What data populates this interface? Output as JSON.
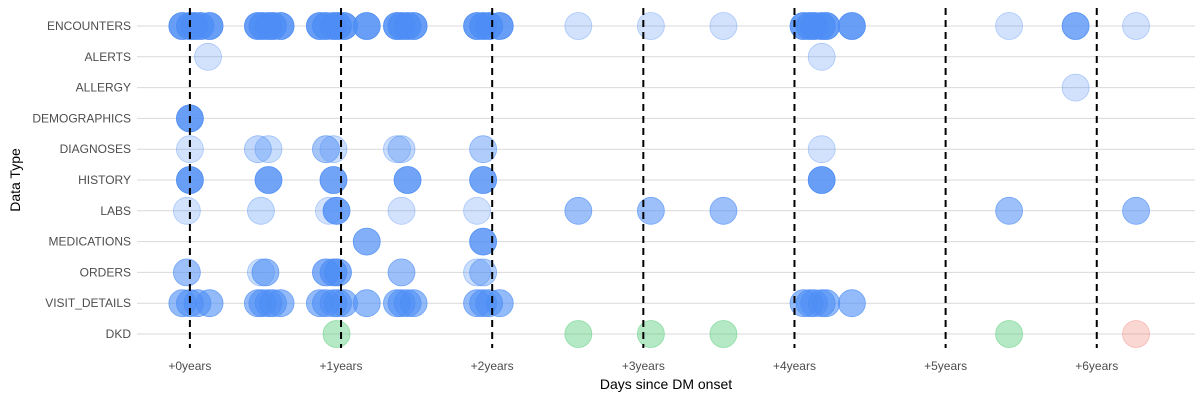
{
  "chart_data": {
    "type": "scatter",
    "xlabel": "Days since DM onset",
    "ylabel": "Data Type",
    "xlim": [
      -0.35,
      6.65
    ],
    "x_ticks": [
      {
        "value": 0,
        "label": "+0years"
      },
      {
        "value": 1,
        "label": "+1years"
      },
      {
        "value": 2,
        "label": "+2years"
      },
      {
        "value": 3,
        "label": "+3years"
      },
      {
        "value": 4,
        "label": "+4years"
      },
      {
        "value": 5,
        "label": "+5years"
      },
      {
        "value": 6,
        "label": "+6years"
      }
    ],
    "categories": [
      "ENCOUNTERS",
      "ALERTS",
      "ALLERGY",
      "DEMOGRAPHICS",
      "DIAGNOSES",
      "HISTORY",
      "LABS",
      "MEDICATIONS",
      "ORDERS",
      "VISIT_DETAILS",
      "DKD"
    ],
    "vlines": [
      0,
      1,
      2,
      3,
      4,
      5,
      6
    ],
    "grid": "horizontal",
    "legend": "none",
    "colors": {
      "default": "#4d8df5",
      "dkd_negative": "#5ccf7f",
      "dkd_positive": "#f28b82",
      "vline": "#000000",
      "grid": "#d9d9d9"
    },
    "points": [
      {
        "category": "ENCOUNTERS",
        "x": [
          -0.05,
          0.0,
          0.03,
          0.07,
          0.13,
          0.45,
          0.48,
          0.52,
          0.55,
          0.6,
          0.86,
          0.9,
          0.95,
          0.98,
          1.02,
          1.17,
          1.37,
          1.4,
          1.44,
          1.48,
          1.9,
          1.94,
          1.98,
          2.05,
          2.57,
          3.05,
          3.53,
          4.06,
          4.1,
          4.13,
          4.18,
          4.21,
          4.38,
          5.42,
          5.86,
          6.26
        ],
        "alpha": [
          0.85,
          0.85,
          0.85,
          0.85,
          0.85,
          0.85,
          0.85,
          0.85,
          0.85,
          0.85,
          0.85,
          0.85,
          0.85,
          0.85,
          0.85,
          0.85,
          0.85,
          0.85,
          0.85,
          0.85,
          0.85,
          0.85,
          0.85,
          0.85,
          0.25,
          0.25,
          0.25,
          0.85,
          0.85,
          0.85,
          0.85,
          0.85,
          0.85,
          0.25,
          0.75,
          0.25
        ]
      },
      {
        "category": "ALERTS",
        "x": [
          0.12,
          4.18
        ],
        "alpha": [
          0.25,
          0.25
        ]
      },
      {
        "category": "ALLERGY",
        "x": [
          5.86
        ],
        "alpha": [
          0.25
        ]
      },
      {
        "category": "DEMOGRAPHICS",
        "x": [
          0.0
        ],
        "alpha": [
          0.85
        ]
      },
      {
        "category": "DIAGNOSES",
        "x": [
          0.0,
          0.45,
          0.52,
          0.9,
          0.95,
          1.37,
          1.4,
          1.94,
          4.18
        ],
        "alpha": [
          0.25,
          0.35,
          0.3,
          0.5,
          0.3,
          0.3,
          0.35,
          0.45,
          0.25
        ]
      },
      {
        "category": "HISTORY",
        "x": [
          0.0,
          0.52,
          0.95,
          1.44,
          1.94,
          4.18
        ],
        "alpha": [
          0.85,
          0.8,
          0.8,
          0.8,
          0.8,
          0.85
        ]
      },
      {
        "category": "LABS",
        "x": [
          -0.02,
          0.47,
          0.92,
          0.97,
          1.4,
          1.9,
          2.57,
          3.05,
          3.53,
          5.42,
          6.26
        ],
        "alpha": [
          0.25,
          0.3,
          0.25,
          0.8,
          0.25,
          0.25,
          0.55,
          0.55,
          0.55,
          0.55,
          0.55
        ]
      },
      {
        "category": "MEDICATIONS",
        "x": [
          1.17,
          1.94
        ],
        "alpha": [
          0.7,
          0.8
        ]
      },
      {
        "category": "ORDERS",
        "x": [
          -0.02,
          0.47,
          0.5,
          0.9,
          0.95,
          0.98,
          1.4,
          1.9,
          1.94
        ],
        "alpha": [
          0.55,
          0.3,
          0.6,
          0.7,
          0.7,
          0.7,
          0.55,
          0.3,
          0.45
        ]
      },
      {
        "category": "VISIT_DETAILS",
        "x": [
          -0.05,
          0.0,
          0.05,
          0.13,
          0.45,
          0.48,
          0.52,
          0.55,
          0.6,
          0.86,
          0.9,
          0.95,
          0.98,
          1.02,
          1.17,
          1.37,
          1.4,
          1.44,
          1.48,
          1.9,
          1.94,
          1.98,
          2.05,
          4.06,
          4.1,
          4.13,
          4.18,
          4.21,
          4.38
        ],
        "alpha": [
          0.6,
          0.6,
          0.6,
          0.6,
          0.6,
          0.6,
          0.6,
          0.6,
          0.6,
          0.6,
          0.6,
          0.6,
          0.6,
          0.6,
          0.6,
          0.6,
          0.6,
          0.6,
          0.6,
          0.6,
          0.6,
          0.6,
          0.6,
          0.6,
          0.6,
          0.6,
          0.6,
          0.6,
          0.6
        ]
      },
      {
        "category": "DKD",
        "x": [
          0.97,
          2.57,
          3.05,
          3.53,
          5.42
        ],
        "alpha": [
          0.45,
          0.45,
          0.45,
          0.45,
          0.45
        ],
        "color": "#5ccf7f"
      },
      {
        "category": "DKD",
        "x": [
          6.26
        ],
        "alpha": [
          0.35
        ],
        "color": "#f28b82"
      }
    ]
  }
}
